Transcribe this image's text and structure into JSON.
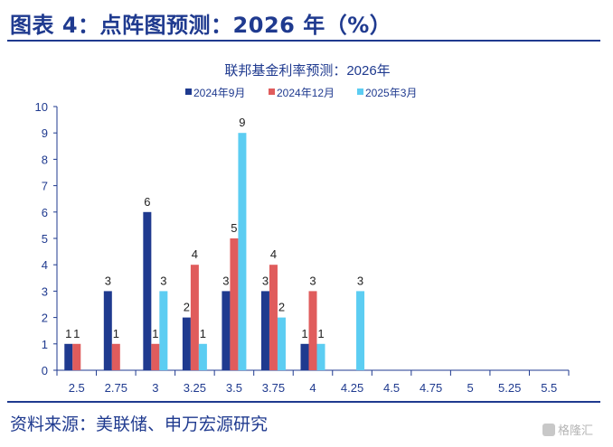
{
  "figure": {
    "title": "图表 4：点阵图预测：2026 年（%）",
    "source": "资料来源：美联储、申万宏源研究",
    "watermark": "格隆汇"
  },
  "colors": {
    "heading": "#1f3a8f",
    "axis": "#1f3a8f",
    "series": [
      "#1f3a8f",
      "#e05c5c",
      "#5ccdf2"
    ]
  },
  "chart_data": {
    "type": "bar",
    "title": "联邦基金利率预测：2026年",
    "xlabel": "",
    "ylabel": "",
    "ylim": [
      0,
      10
    ],
    "yticks": [
      0,
      1,
      2,
      3,
      4,
      5,
      6,
      7,
      8,
      9,
      10
    ],
    "grid": false,
    "legend_position": "top",
    "categories": [
      "2.5",
      "2.75",
      "3",
      "3.25",
      "3.5",
      "3.75",
      "4",
      "4.25",
      "4.5",
      "4.75",
      "5",
      "5.25",
      "5.5"
    ],
    "series": [
      {
        "name": "2024年9月",
        "values": [
          1,
          3,
          6,
          2,
          3,
          3,
          1,
          0,
          0,
          0,
          0,
          0,
          0
        ]
      },
      {
        "name": "2024年12月",
        "values": [
          1,
          1,
          1,
          4,
          5,
          4,
          3,
          0,
          0,
          0,
          0,
          0,
          0
        ]
      },
      {
        "name": "2025年3月",
        "values": [
          0,
          0,
          3,
          1,
          9,
          2,
          1,
          3,
          0,
          0,
          0,
          0,
          0
        ]
      }
    ]
  }
}
